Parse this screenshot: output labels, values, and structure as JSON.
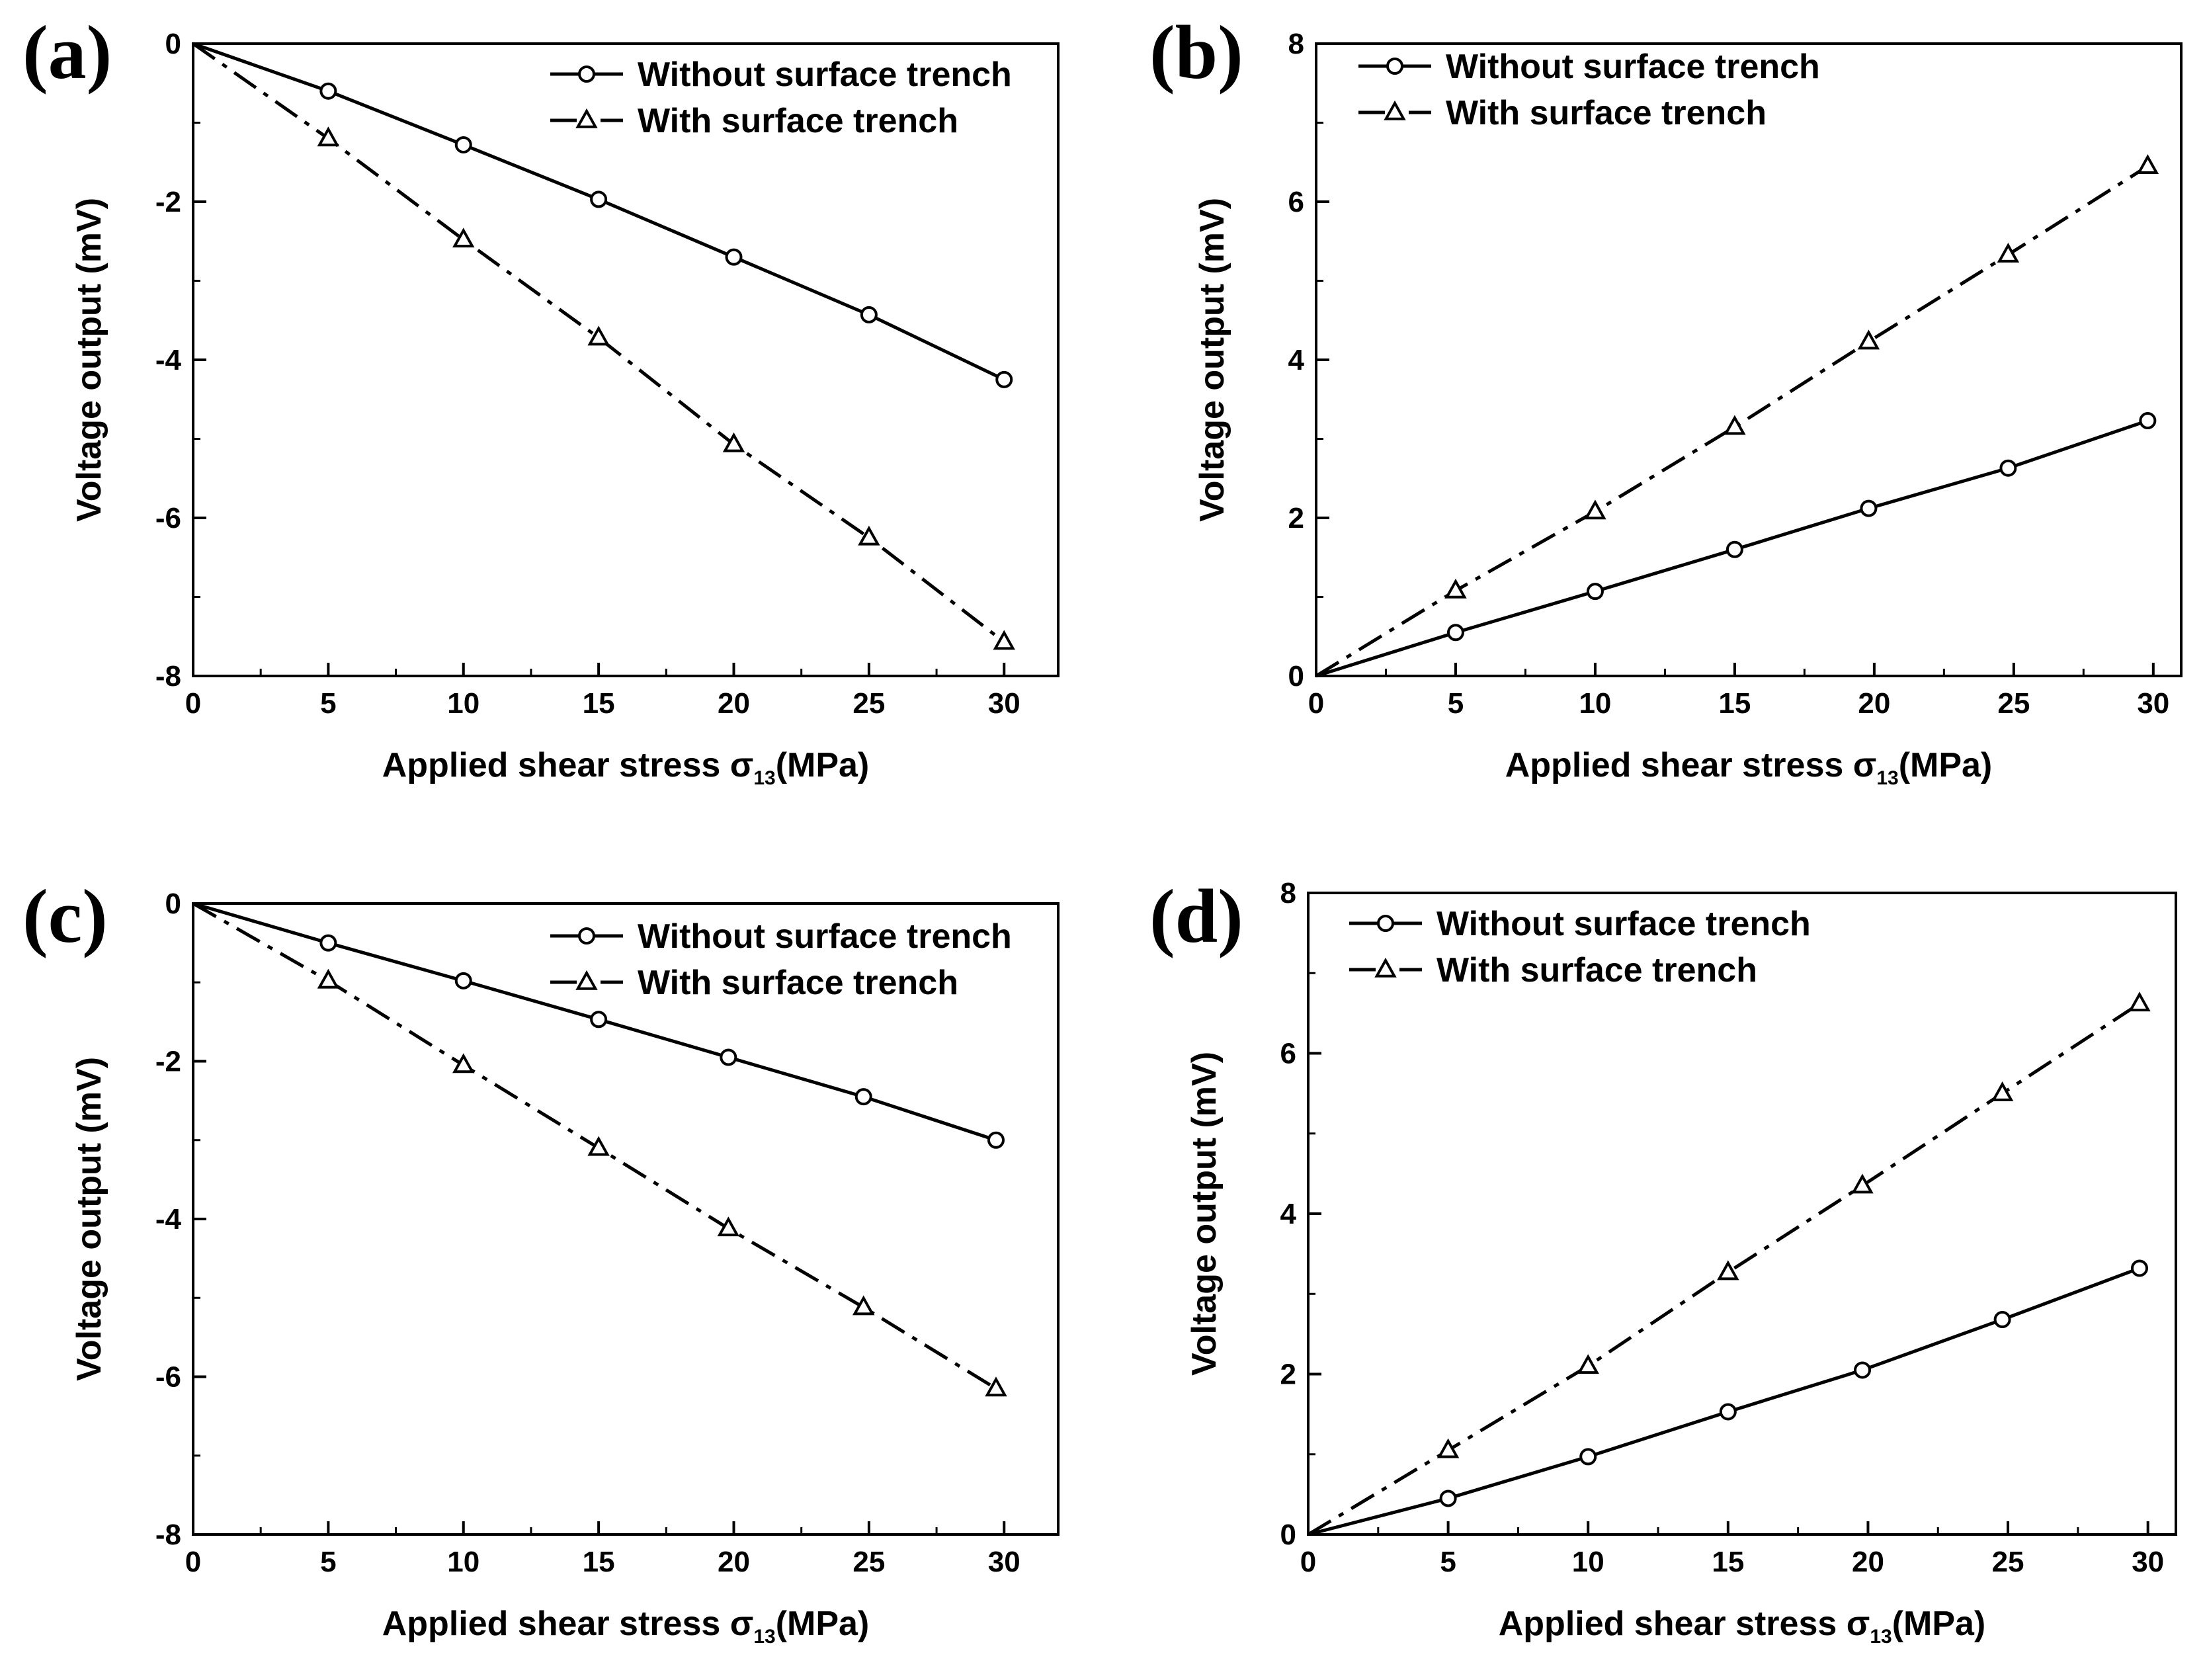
{
  "chart_data": [
    {
      "panel": "(a)",
      "type": "line",
      "xlabel": "Applied shear stress",
      "xlabel_symbol": "σ",
      "xlabel_subscript": "13",
      "xlabel_unit": "(MPa)",
      "ylabel": "Voltage output (mV)",
      "xlim": [
        0,
        32
      ],
      "ylim": [
        -8,
        0
      ],
      "x_ticks": [
        0,
        5,
        10,
        15,
        20,
        25,
        30
      ],
      "y_ticks": [
        -8,
        -6,
        -4,
        -2,
        0
      ],
      "legend_placement": "top-right",
      "series": [
        {
          "name": "Without surface trench",
          "marker": "circle",
          "line": "solid",
          "x": [
            0,
            5,
            10,
            15,
            20,
            25,
            30
          ],
          "y": [
            0,
            -0.6,
            -1.28,
            -1.97,
            -2.7,
            -3.43,
            -4.25
          ]
        },
        {
          "name": "With surface trench",
          "marker": "triangle",
          "line": "dash-dot",
          "x": [
            0,
            5,
            10,
            15,
            20,
            25,
            30
          ],
          "y": [
            0,
            -1.2,
            -2.48,
            -3.72,
            -5.07,
            -6.25,
            -7.57
          ]
        }
      ]
    },
    {
      "panel": "(b)",
      "type": "line",
      "xlabel": "Applied shear stress",
      "xlabel_symbol": "σ",
      "xlabel_subscript": "13",
      "xlabel_unit": "(MPa)",
      "ylabel": "Voltage output (mV)",
      "xlim": [
        0,
        31
      ],
      "ylim": [
        0,
        8
      ],
      "x_ticks": [
        0,
        5,
        10,
        15,
        20,
        25,
        30
      ],
      "y_ticks": [
        0,
        2,
        4,
        6,
        8
      ],
      "legend_placement": "top-left",
      "series": [
        {
          "name": "Without surface trench",
          "marker": "circle",
          "line": "solid",
          "x": [
            0,
            5,
            10,
            15,
            19.8,
            24.8,
            29.8
          ],
          "y": [
            0,
            0.55,
            1.07,
            1.6,
            2.12,
            2.63,
            3.23
          ]
        },
        {
          "name": "With surface trench",
          "marker": "triangle",
          "line": "dash-dot",
          "x": [
            0,
            5,
            10,
            15,
            19.8,
            24.8,
            29.8
          ],
          "y": [
            0,
            1.08,
            2.08,
            3.15,
            4.23,
            5.33,
            6.45
          ]
        }
      ]
    },
    {
      "panel": "(c)",
      "type": "line",
      "xlabel": "Applied shear stress",
      "xlabel_symbol": "σ",
      "xlabel_subscript": "13",
      "xlabel_unit": "(MPa)",
      "ylabel": "Voltage output (mV)",
      "xlim": [
        0,
        32
      ],
      "ylim": [
        -8,
        0
      ],
      "x_ticks": [
        0,
        5,
        10,
        15,
        20,
        25,
        30
      ],
      "y_ticks": [
        -8,
        -6,
        -4,
        -2,
        0
      ],
      "legend_placement": "top-right",
      "series": [
        {
          "name": "Without surface trench",
          "marker": "circle",
          "line": "solid",
          "x": [
            0,
            5,
            10,
            15,
            19.8,
            24.8,
            29.7
          ],
          "y": [
            0,
            -0.5,
            -0.98,
            -1.47,
            -1.95,
            -2.45,
            -3.0
          ]
        },
        {
          "name": "With surface trench",
          "marker": "triangle",
          "line": "dash-dot",
          "x": [
            0,
            5,
            10,
            15,
            19.8,
            24.8,
            29.7
          ],
          "y": [
            0,
            -0.98,
            -2.05,
            -3.1,
            -4.12,
            -5.12,
            -6.15
          ]
        }
      ]
    },
    {
      "panel": "(d)",
      "type": "line",
      "xlabel": "Applied shear stress",
      "xlabel_symbol": "σ",
      "xlabel_subscript": "13",
      "xlabel_unit": "(MPa)",
      "ylabel": "Voltage output (mV)",
      "xlim": [
        0,
        31
      ],
      "ylim": [
        0,
        8
      ],
      "x_ticks": [
        0,
        5,
        10,
        15,
        20,
        25,
        30
      ],
      "y_ticks": [
        0,
        2,
        4,
        6,
        8
      ],
      "legend_placement": "top-left",
      "series": [
        {
          "name": "Without surface trench",
          "marker": "circle",
          "line": "solid",
          "x": [
            0,
            5,
            10,
            15,
            19.8,
            24.8,
            29.7
          ],
          "y": [
            0,
            0.45,
            0.97,
            1.53,
            2.05,
            2.68,
            3.32
          ]
        },
        {
          "name": "With surface trench",
          "marker": "triangle",
          "line": "dash-dot",
          "x": [
            0,
            5,
            10,
            15,
            19.8,
            24.8,
            29.7
          ],
          "y": [
            0,
            1.05,
            2.1,
            3.27,
            4.35,
            5.5,
            6.62
          ]
        }
      ]
    }
  ]
}
